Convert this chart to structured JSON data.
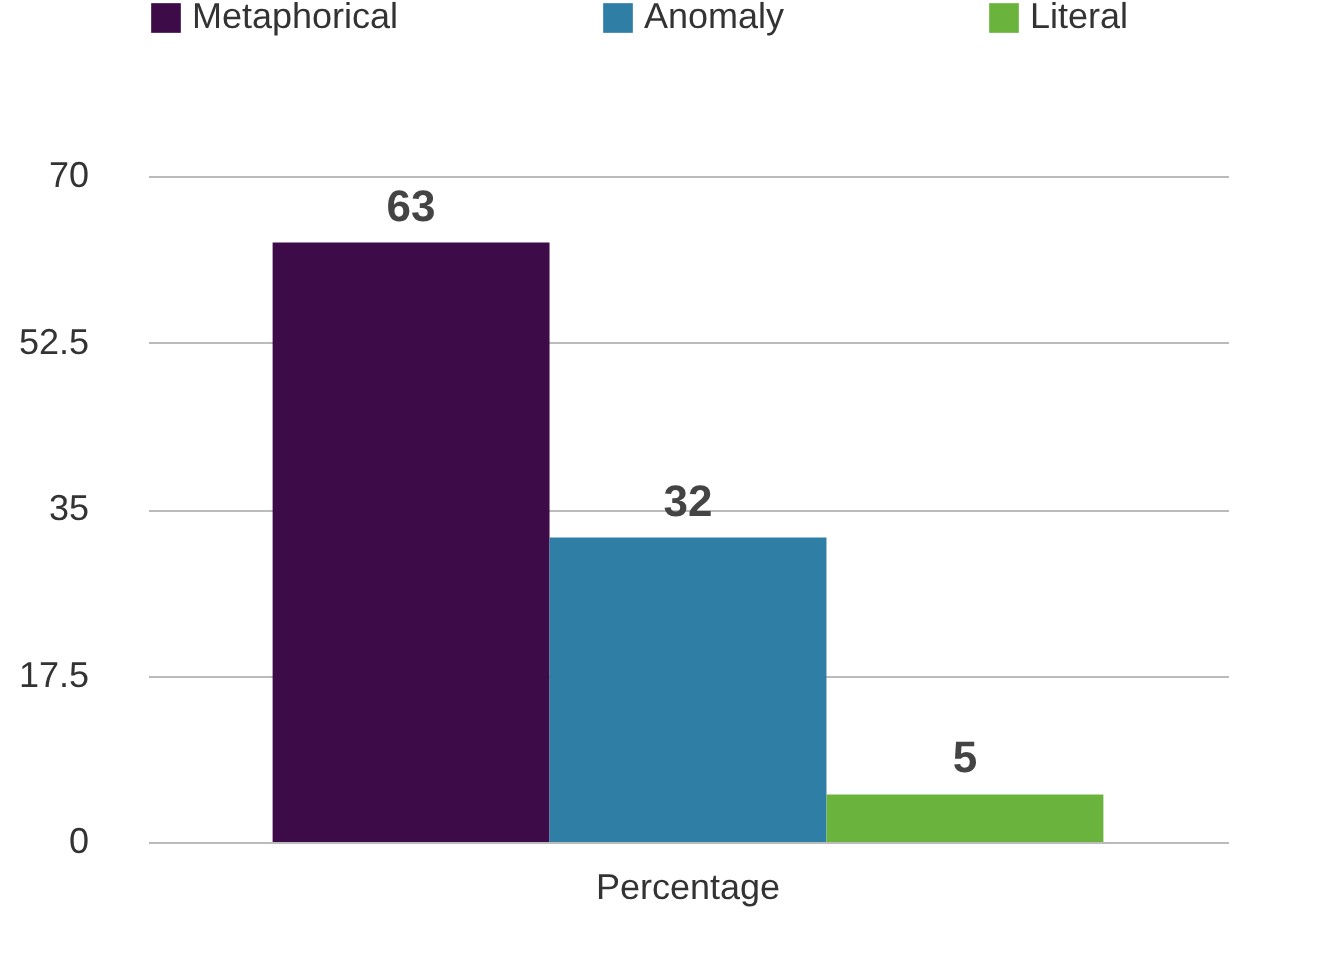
{
  "chart_data": {
    "type": "bar",
    "categories": [
      "Percentage"
    ],
    "series": [
      {
        "name": "Metaphorical",
        "color": "#3d0b47",
        "values": [
          63
        ]
      },
      {
        "name": "Anomaly",
        "color": "#2f7ea6",
        "values": [
          32
        ]
      },
      {
        "name": "Literal",
        "color": "#6ab43e",
        "values": [
          5
        ]
      }
    ],
    "ylim": [
      0,
      70
    ],
    "yticks": [
      0,
      17.5,
      35,
      52.5,
      70
    ],
    "grid": "y",
    "legend": "top",
    "data_labels": true
  }
}
